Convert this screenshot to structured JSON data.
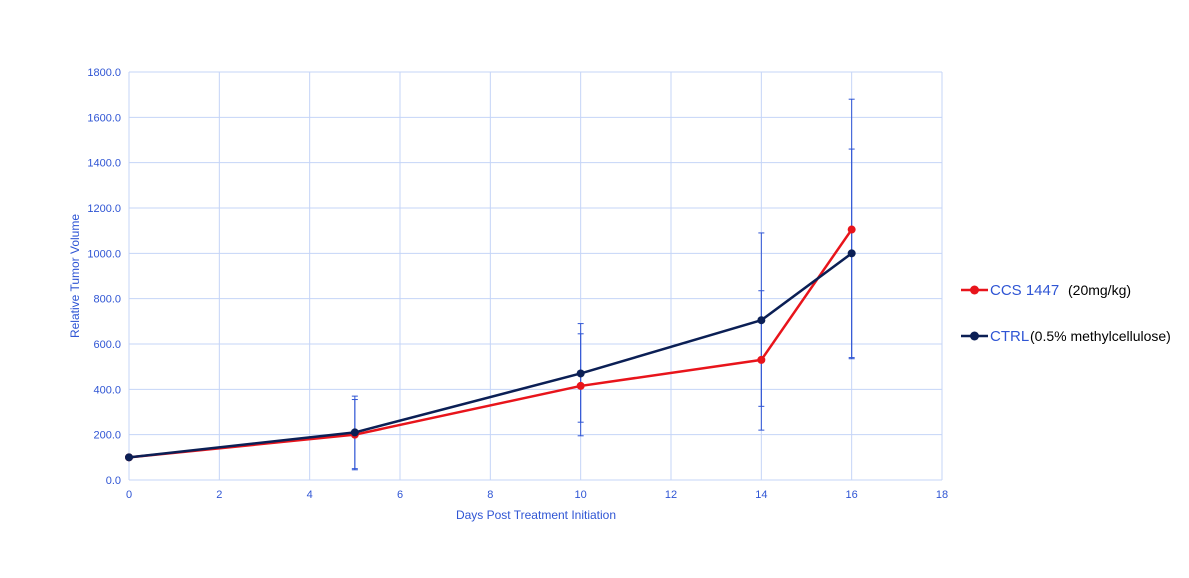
{
  "colors": {
    "axis_text": "#2f55d4",
    "grid": "#c5d4f7",
    "error_bar": "#2f55d4",
    "series_ccs": "#e8141b",
    "series_ctrl": "#0b1f55",
    "legend_note": "#000000"
  },
  "chart_data": {
    "type": "line",
    "title": "",
    "xlabel": "Days Post Treatment Initiation",
    "ylabel": "Relative Tumor Volume",
    "xlim": [
      0,
      18
    ],
    "ylim": [
      0,
      1800
    ],
    "x_ticks": [
      0,
      2,
      4,
      6,
      8,
      10,
      12,
      14,
      16,
      18
    ],
    "x_tick_labels": [
      "0",
      "2",
      "4",
      "6",
      "8",
      "10",
      "12",
      "14",
      "16",
      "18"
    ],
    "y_ticks": [
      0,
      200,
      400,
      600,
      800,
      1000,
      1200,
      1400,
      1600,
      1800
    ],
    "y_tick_labels": [
      "0.0",
      "200.0",
      "400.0",
      "600.0",
      "800.0",
      "1000.0",
      "1200.0",
      "1400.0",
      "1600.0",
      "1800.0"
    ],
    "grid": true,
    "legend_position": "right",
    "series": [
      {
        "key": "ccs",
        "name": "CCS 1447",
        "note": "(20mg/kg)",
        "x": [
          0,
          5,
          10,
          14,
          16
        ],
        "y": [
          100,
          200,
          415,
          530,
          1105
        ],
        "error_low": [
          null,
          45,
          195,
          220,
          535
        ],
        "error_high": [
          null,
          355,
          645,
          835,
          1680
        ]
      },
      {
        "key": "ctrl",
        "name": "CTRL",
        "note": "(0.5% methylcellulose)",
        "x": [
          0,
          5,
          10,
          14,
          16
        ],
        "y": [
          100,
          210,
          470,
          705,
          1000
        ],
        "error_low": [
          null,
          50,
          255,
          325,
          540
        ],
        "error_high": [
          null,
          370,
          690,
          1090,
          1460
        ]
      }
    ]
  }
}
